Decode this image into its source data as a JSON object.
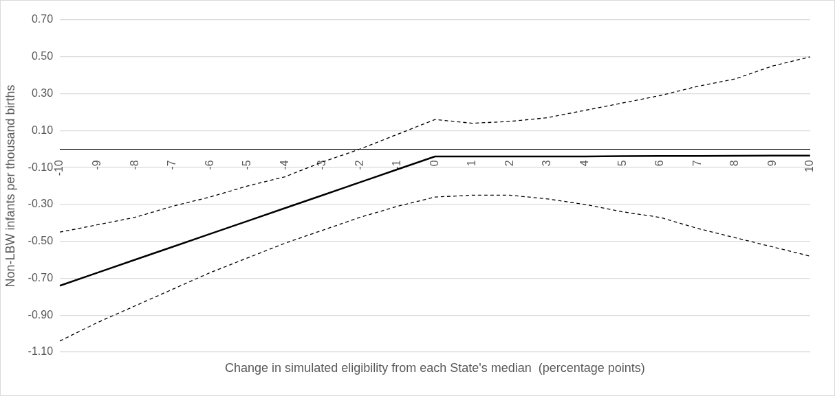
{
  "chart_data": {
    "type": "line",
    "xlabel": "Change in simulated eligibility from each State's median  (percentage points)",
    "ylabel": "Non-LBW infants per thousand births",
    "categories": [
      "-10",
      "-9",
      "-8",
      "-7",
      "-6",
      "-5",
      "-4",
      "-3",
      "-2",
      "-1",
      "0",
      "1",
      "2",
      "3",
      "4",
      "5",
      "6",
      "7",
      "8",
      "9",
      "10"
    ],
    "series": [
      {
        "color": "#000000",
        "line_style": "solid",
        "values": [
          -0.74,
          -0.67,
          -0.6,
          -0.53,
          -0.46,
          -0.39,
          -0.32,
          -0.25,
          -0.18,
          -0.11,
          -0.04,
          -0.04,
          -0.04,
          -0.04,
          -0.04,
          -0.038,
          -0.037,
          -0.037,
          -0.036,
          -0.035,
          -0.035
        ]
      },
      {
        "color": "#000000",
        "line_style": "dashed",
        "values": [
          -0.45,
          -0.41,
          -0.37,
          -0.31,
          -0.26,
          -0.2,
          -0.15,
          -0.07,
          0.0,
          0.08,
          0.16,
          0.14,
          0.15,
          0.17,
          0.21,
          0.25,
          0.29,
          0.34,
          0.38,
          0.45,
          0.5
        ]
      },
      {
        "color": "#000000",
        "line_style": "dashed",
        "values": [
          -1.04,
          -0.94,
          -0.85,
          -0.76,
          -0.67,
          -0.59,
          -0.51,
          -0.44,
          -0.37,
          -0.31,
          -0.26,
          -0.25,
          -0.25,
          -0.27,
          -0.3,
          -0.34,
          -0.37,
          -0.43,
          -0.48,
          -0.53,
          -0.58
        ]
      }
    ],
    "ylim": [
      -1.1,
      0.7
    ],
    "yticks": [
      {
        "value": -1.1,
        "label": "-1.10"
      },
      {
        "value": -0.9,
        "label": "-0.90"
      },
      {
        "value": -0.7,
        "label": "-0.70"
      },
      {
        "value": -0.5,
        "label": "-0.50"
      },
      {
        "value": -0.3,
        "label": "-0.30"
      },
      {
        "value": -0.1,
        "label": "-0.10"
      },
      {
        "value": 0.1,
        "label": "0.10"
      },
      {
        "value": 0.3,
        "label": "0.30"
      },
      {
        "value": 0.5,
        "label": "0.50"
      },
      {
        "value": 0.7,
        "label": "0.70"
      }
    ],
    "grid": "y",
    "legend": false,
    "marker": "none"
  }
}
